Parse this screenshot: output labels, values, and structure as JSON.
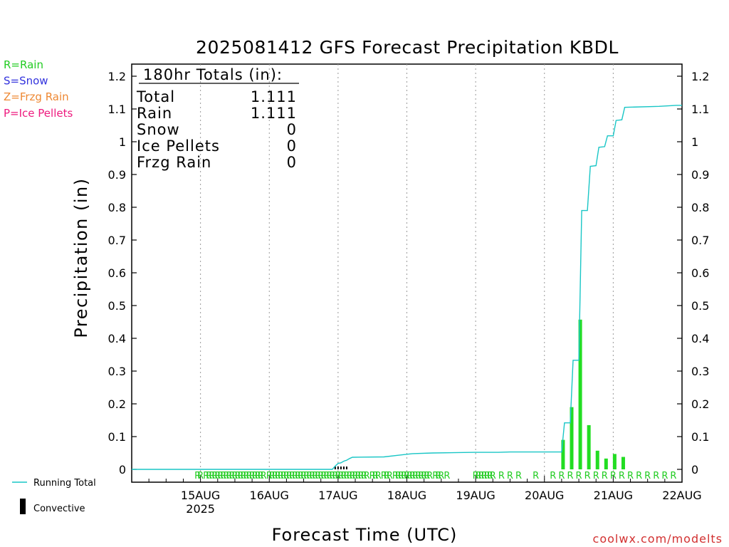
{
  "chart_data": {
    "type": "bar",
    "title": "2025081412 GFS Forecast Precipitation KBDL",
    "ylabel": "Precipitation (in)",
    "xlabel": "Forecast Time (UTC)",
    "ylim": [
      0,
      1.22
    ],
    "y_ticks": [
      "0",
      "0.1",
      "0.2",
      "0.3",
      "0.4",
      "0.5",
      "0.6",
      "0.7",
      "0.8",
      "0.9",
      "1",
      "1.1",
      "1.2"
    ],
    "x_ticks": [
      {
        "label": "15AUG",
        "sub": "2025",
        "hour": 36
      },
      {
        "label": "16AUG",
        "sub": "",
        "hour": 60
      },
      {
        "label": "17AUG",
        "sub": "",
        "hour": 84
      },
      {
        "label": "18AUG",
        "sub": "",
        "hour": 108
      },
      {
        "label": "19AUG",
        "sub": "",
        "hour": 132
      },
      {
        "label": "20AUG",
        "sub": "",
        "hour": 156
      },
      {
        "label": "21AUG",
        "sub": "",
        "hour": 180
      },
      {
        "label": "22AUG",
        "sub": "",
        "hour": 204
      }
    ],
    "x_range_hours": [
      12,
      204
    ],
    "grid": "dotted vertical at day boundaries",
    "colors": {
      "running_total": "#19c6c6",
      "bars": "#22dd22",
      "rain": "#22cc22",
      "snow": "#3333dd",
      "frzg_rain": "#ee8833",
      "ice_pellets": "#ee1a7e",
      "credit": "#d23030"
    },
    "series": [
      {
        "name": "Running Total",
        "type": "line",
        "points": [
          [
            12,
            0.0
          ],
          [
            82,
            0.0
          ],
          [
            83,
            0.01
          ],
          [
            84,
            0.018
          ],
          [
            85,
            0.02
          ],
          [
            86,
            0.025
          ],
          [
            87,
            0.028
          ],
          [
            88,
            0.033
          ],
          [
            89,
            0.037
          ],
          [
            100,
            0.038
          ],
          [
            105,
            0.043
          ],
          [
            108,
            0.046
          ],
          [
            110,
            0.048
          ],
          [
            117,
            0.05
          ],
          [
            132,
            0.052
          ],
          [
            140,
            0.052
          ],
          [
            144,
            0.053
          ],
          [
            156,
            0.053
          ],
          [
            162,
            0.053
          ],
          [
            163,
            0.142
          ],
          [
            165,
            0.142
          ],
          [
            166,
            0.333
          ],
          [
            168,
            0.333
          ],
          [
            169,
            0.79
          ],
          [
            171,
            0.79
          ],
          [
            172,
            0.925
          ],
          [
            174,
            0.927
          ],
          [
            175,
            0.983
          ],
          [
            177,
            0.985
          ],
          [
            178,
            1.018
          ],
          [
            180,
            1.018
          ],
          [
            181,
            1.065
          ],
          [
            183,
            1.067
          ],
          [
            184,
            1.105
          ],
          [
            196,
            1.108
          ],
          [
            202,
            1.111
          ],
          [
            204,
            1.111
          ]
        ]
      },
      {
        "name": "Convective",
        "type": "bar",
        "points": [
          [
            162.5,
            0.09
          ],
          [
            165.5,
            0.19
          ],
          [
            168.5,
            0.457
          ],
          [
            171.5,
            0.135
          ],
          [
            174.5,
            0.057
          ],
          [
            177.5,
            0.033
          ],
          [
            180.5,
            0.047
          ],
          [
            183.5,
            0.038
          ]
        ]
      }
    ],
    "ptype_markers": {
      "symbol": "R",
      "hours": [
        35,
        36,
        38,
        39,
        40,
        41,
        42,
        43,
        44,
        45,
        46,
        47,
        48,
        49,
        50,
        51,
        52,
        53,
        54,
        55,
        56,
        57,
        58,
        60,
        61,
        62,
        63,
        64,
        65,
        66,
        67,
        68,
        69,
        70,
        71,
        72,
        73,
        74,
        75,
        76,
        77,
        78,
        79,
        80,
        81,
        82,
        83,
        84,
        85,
        86,
        87,
        88,
        89,
        90,
        91,
        92,
        93,
        94,
        96,
        97,
        98,
        100,
        101,
        102,
        104,
        105,
        106,
        107,
        108,
        109,
        110,
        111,
        112,
        113,
        114,
        115,
        116,
        118,
        119,
        120,
        122,
        132,
        133,
        134,
        135,
        136,
        137,
        138,
        141,
        144,
        147,
        153,
        159,
        162,
        165,
        168,
        171,
        174,
        177,
        180,
        183,
        186,
        189,
        192,
        195,
        198,
        201
      ]
    },
    "totals_box": {
      "heading": "180hr Totals (in):",
      "rows": [
        {
          "label": "Total",
          "value": "1.111"
        },
        {
          "label": "Rain",
          "value": "1.111"
        },
        {
          "label": "Snow",
          "value": "0"
        },
        {
          "label": "Ice Pellets",
          "value": "0"
        },
        {
          "label": "Frzg Rain",
          "value": "0"
        }
      ]
    },
    "ptype_legend": [
      {
        "text": "R=Rain",
        "color": "#22cc22"
      },
      {
        "text": "S=Snow",
        "color": "#3333dd"
      },
      {
        "text": "Z=Frzg Rain",
        "color": "#ee8833"
      },
      {
        "text": "P=Ice Pellets",
        "color": "#ee1a7e"
      }
    ],
    "series_legend": [
      {
        "text": "Running Total"
      },
      {
        "text": "Convective"
      }
    ],
    "credit": "coolwx.com/modelts"
  }
}
